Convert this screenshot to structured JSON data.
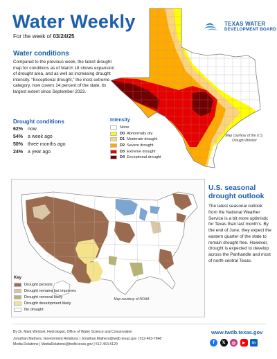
{
  "header": {
    "title": "Water Weekly",
    "subtitle_prefix": "For the week of ",
    "subtitle_date": "03/24/25",
    "logo_line1": "TEXAS WATER",
    "logo_line2": "DEVELOPMENT BOARD"
  },
  "conditions": {
    "heading": "Water conditions",
    "body": "Compared to the previous week, the latest drought map for conditions as of March 18 shows expansion of drought area, and as well as increasing drought intensity. “Exceptional drought,” the most extreme category, now covers 14 percent of the state, its largest extent since September 2023."
  },
  "drought_stats": {
    "heading": "Drought conditions",
    "rows": [
      {
        "value": "62%",
        "label": "now"
      },
      {
        "value": "54%",
        "label": "a week ago"
      },
      {
        "value": "50%",
        "label": "three months ago"
      },
      {
        "value": "24%",
        "label": "a year ago"
      }
    ]
  },
  "intensity_legend": {
    "heading": "Intensity",
    "items": [
      {
        "code": "",
        "label": "None",
        "color": "#ffffff"
      },
      {
        "code": "D0",
        "label": "Abnormally dry",
        "color": "#ffff00"
      },
      {
        "code": "D1",
        "label": "Moderate drought",
        "color": "#fcd37f"
      },
      {
        "code": "D2",
        "label": "Severe drought",
        "color": "#ffaa00"
      },
      {
        "code": "D3",
        "label": "Extreme drought",
        "color": "#e60000"
      },
      {
        "code": "D4",
        "label": "Exceptional drought",
        "color": "#730000"
      }
    ],
    "credit": "Map courtesy of the U.S. Drought Monitor"
  },
  "outlook": {
    "heading": "U.S. seasonal drought outlook",
    "body": "The latest seasonal outlook from the National Weather Service is a bit more optimistic for Texas than last month’s. By the end of June, they expect the eastern quarter of the state to remain drought free. However, drought is expected to develop across the Panhandle and most of north central Texas."
  },
  "outlook_legend": {
    "heading": "Key",
    "items": [
      {
        "label": "Drought persists",
        "color": "#9b6b4f"
      },
      {
        "label": "Drought remains but improves",
        "color": "#d8c6a6"
      },
      {
        "label": "Drought removal likely",
        "color": "#b5b375"
      },
      {
        "label": "Drought development likely",
        "color": "#f5e38c"
      },
      {
        "label": "No drought",
        "color": "#ffffff"
      }
    ],
    "credit": "Map courtesy of NOAA"
  },
  "footer": {
    "line1": "By Dr. Mark Wentzel, Hydrologist, Office of Water Science and Conservation",
    "line2": "Jonathan Mathers, Government Relations | Jonathan.Mathers@twdb.texas.gov | 512-463-7848",
    "line3": "Media Relations | MediaRelations@twdb.texas.gov | 512-463-5129",
    "website": "www.twdb.texas.gov",
    "socials": [
      {
        "icon": "facebook-icon",
        "glyph": "f",
        "color": "#1877f2"
      },
      {
        "icon": "x-icon",
        "glyph": "𝕏",
        "color": "#111111"
      },
      {
        "icon": "instagram-icon",
        "glyph": "◎",
        "color": "#c13584"
      },
      {
        "icon": "youtube-icon",
        "glyph": "▶",
        "color": "#ff0000"
      },
      {
        "icon": "linkedin-icon",
        "glyph": "in",
        "color": "#0a66c2"
      }
    ]
  }
}
